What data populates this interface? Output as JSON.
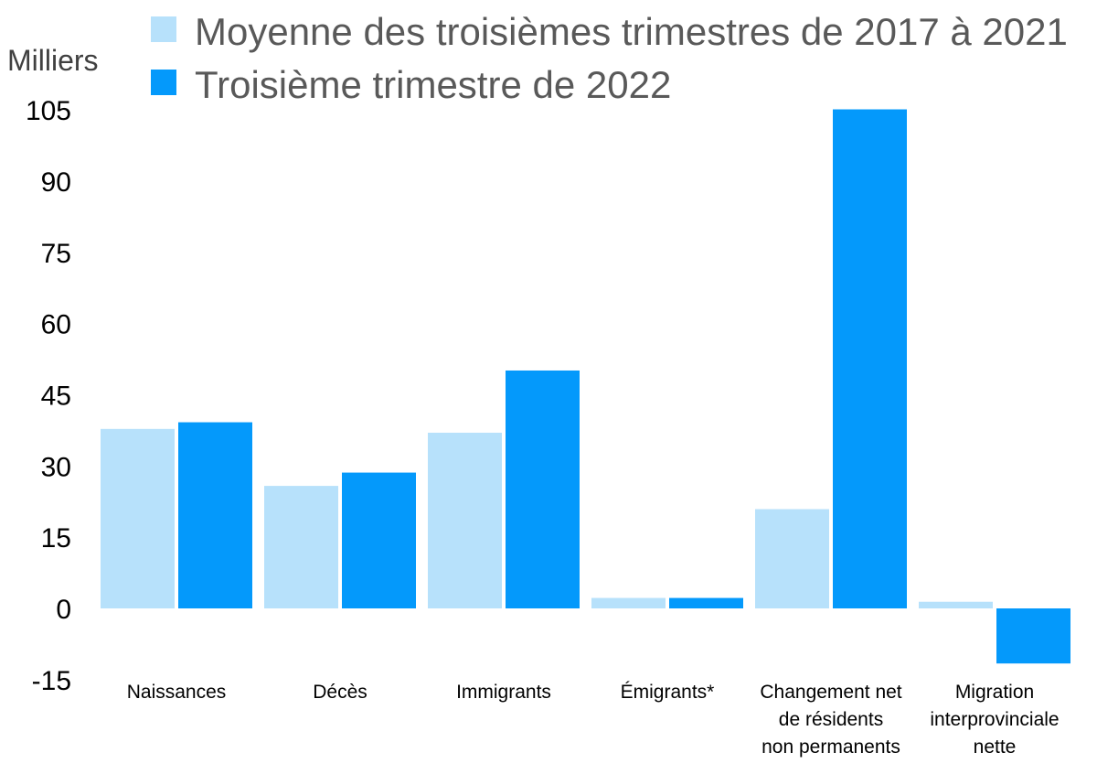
{
  "chart_data": {
    "type": "bar",
    "unit_label": "Milliers",
    "categories": [
      [
        "Naissances"
      ],
      [
        "Décès"
      ],
      [
        "Immigrants"
      ],
      [
        "Émigrants*"
      ],
      [
        "Changement net",
        "de résidents",
        "non permanents"
      ],
      [
        "Migration",
        "interprovinciale",
        "nette"
      ]
    ],
    "series": [
      {
        "name": "Moyenne des troisièmes trimestres de 2017 à 2021",
        "color": "#b7e1fb",
        "values": [
          37.8,
          25.8,
          37.0,
          2.2,
          20.9,
          1.4
        ]
      },
      {
        "name": "Troisième trimestre de 2022",
        "color": "#0499fb",
        "values": [
          39.2,
          28.6,
          50.1,
          2.2,
          105.1,
          -11.6
        ]
      }
    ],
    "ylim": [
      -15,
      105
    ],
    "yticks": [
      105,
      90,
      75,
      60,
      45,
      30,
      15,
      0,
      -15
    ],
    "grid": false,
    "legend_position": "top"
  }
}
